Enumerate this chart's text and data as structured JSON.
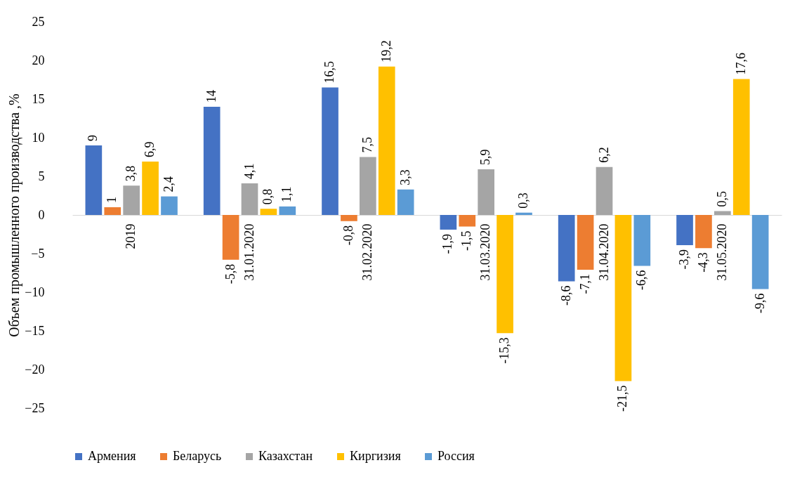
{
  "chart_data": {
    "type": "bar",
    "ylabel": "Объем промышленного производства ,%",
    "categories": [
      "2019",
      "31.01.2020",
      "31.02.2020",
      "31.03.2020",
      "31.04.2020",
      "31.05.2020"
    ],
    "series": [
      {
        "name": "Армения",
        "color": "#4472c4",
        "values": [
          9,
          14,
          16.5,
          -1.9,
          -8.6,
          -3.9
        ],
        "value_labels": [
          "9",
          "14",
          "16,5",
          "-1,9",
          "-8,6",
          "-3,9"
        ]
      },
      {
        "name": "Беларусь",
        "color": "#ed7d31",
        "values": [
          1,
          -5.8,
          -0.8,
          -1.5,
          -7.1,
          -4.3
        ],
        "value_labels": [
          "1",
          "-5,8",
          "-0,8",
          "-1,5",
          "-7,1",
          "-4,3"
        ]
      },
      {
        "name": "Казахстан",
        "color": "#a5a5a5",
        "values": [
          3.8,
          4.1,
          7.5,
          5.9,
          6.2,
          0.5
        ],
        "value_labels": [
          "3,8",
          "4,1",
          "7,5",
          "5,9",
          "6,2",
          "0,5"
        ]
      },
      {
        "name": "Киргизия",
        "color": "#ffc000",
        "values": [
          6.9,
          0.8,
          19.2,
          -15.3,
          -21.5,
          17.6
        ],
        "value_labels": [
          "6,9",
          "0,8",
          "19,2",
          "-15,3",
          "-21,5",
          "17,6"
        ]
      },
      {
        "name": "Россия",
        "color": "#5b9bd5",
        "values": [
          2.4,
          1.1,
          3.3,
          0.3,
          -6.6,
          -9.6
        ],
        "value_labels": [
          "2,4",
          "1,1",
          "3,3",
          "0,3",
          "-6,6",
          "-9,6"
        ]
      }
    ],
    "ylim": [
      -25,
      25
    ],
    "yticks": [
      -25,
      -20,
      -15,
      -10,
      -5,
      0,
      5,
      10,
      15,
      20,
      25
    ],
    "legend": "bottom"
  }
}
